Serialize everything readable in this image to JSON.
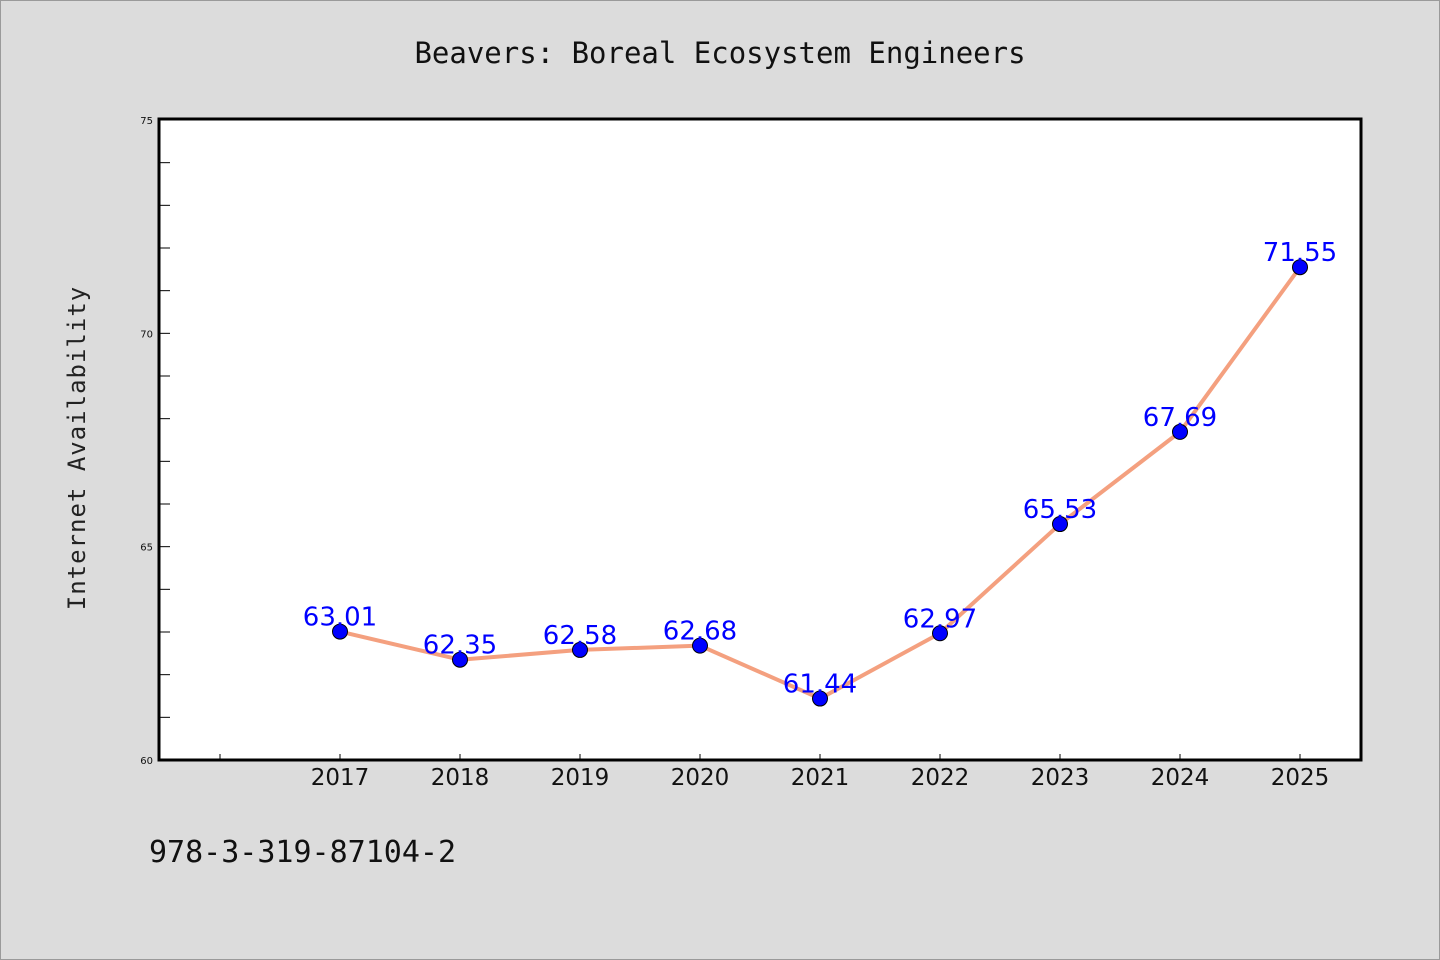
{
  "chart_data": {
    "type": "line",
    "title": "Beavers: Boreal Ecosystem Engineers",
    "xlabel": "",
    "ylabel": "Internet Availability",
    "categories": [
      "2017",
      "2018",
      "2019",
      "2020",
      "2021",
      "2022",
      "2023",
      "2024",
      "2025"
    ],
    "values": [
      63.01,
      62.35,
      62.58,
      62.68,
      61.44,
      62.97,
      65.53,
      67.69,
      71.55
    ],
    "data_labels": [
      "63.01",
      "62.35",
      "62.58",
      "62.68",
      "61.44",
      "62.97",
      "65.53",
      "67.69",
      "71.55"
    ],
    "ylim": [
      60,
      75
    ],
    "y_ticks": [
      "60",
      "65",
      "70",
      "75"
    ],
    "grid": false,
    "line_color": "#f4a07f",
    "marker_color": "#0000ff",
    "label_color": "#0000ff"
  },
  "footer": {
    "isbn": "978-3-319-87104-2"
  }
}
